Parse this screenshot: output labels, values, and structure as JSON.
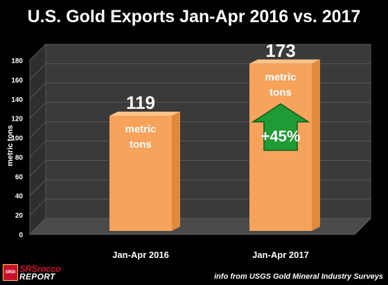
{
  "chart_data": {
    "type": "bar",
    "title": "U.S. Gold Exports Jan-Apr 2016 vs. 2017",
    "ylabel": "metric tons",
    "xlabel": "",
    "ylim": [
      0,
      180
    ],
    "yticks": [
      0,
      20,
      40,
      60,
      80,
      100,
      120,
      140,
      160,
      180
    ],
    "categories": [
      "Jan-Apr 2016",
      "Jan-Apr 2017"
    ],
    "values": [
      119,
      173
    ],
    "data_labels": [
      "119",
      "173"
    ],
    "unit_label": "metric tons",
    "annotation": "+45%",
    "source": "info from USGS Gold Mineral Industry Surveys",
    "grid": true,
    "colors": {
      "bar": "#f7a35c",
      "bar_side": "#e08a3c",
      "arrow": "#1f9a34",
      "title": "#ffffff",
      "wall": "#3a3a3a"
    }
  },
  "logo": {
    "badge": "SRDI",
    "top": "SRSrocco",
    "bottom": "REPORT"
  }
}
